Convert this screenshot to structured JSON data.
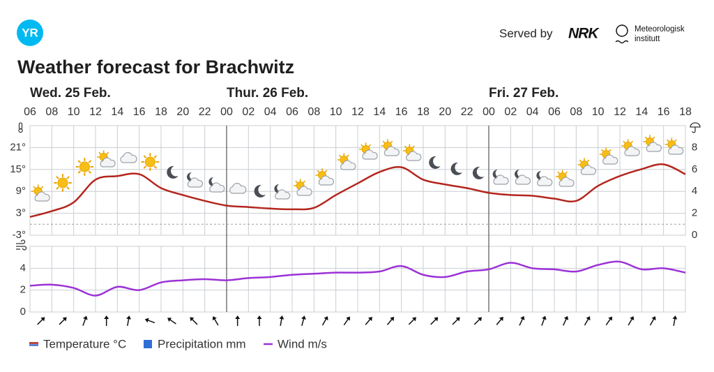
{
  "header": {
    "logo": "YR",
    "served_by": "Served by",
    "nrk": "NRK",
    "met_line1": "Meteorologisk",
    "met_line2": "institutt"
  },
  "chart_data": [
    {
      "type": "line",
      "title": "Weather forecast for Brachwitz",
      "day_labels": [
        {
          "value": 6,
          "label": "Wed. 25 Feb."
        },
        {
          "value": 24,
          "label": "Thur. 26 Feb."
        },
        {
          "value": 48,
          "label": "Fri. 27 Feb."
        }
      ],
      "xlim": [
        6,
        66
      ],
      "xticks": [
        {
          "value": 6,
          "label": "06"
        },
        {
          "value": 8,
          "label": "08"
        },
        10,
        12,
        14,
        16,
        18,
        20,
        22,
        {
          "value": 24,
          "label": "00"
        },
        {
          "value": 26,
          "label": "02"
        },
        {
          "value": 28,
          "label": "04"
        },
        {
          "value": 30,
          "label": "06"
        },
        {
          "value": 32,
          "label": "08"
        },
        {
          "value": 34,
          "label": "10"
        },
        {
          "value": 36,
          "label": "12"
        },
        {
          "value": 38,
          "label": "14"
        },
        {
          "value": 40,
          "label": "16"
        },
        {
          "value": 42,
          "label": "18"
        },
        {
          "value": 44,
          "label": "20"
        },
        {
          "value": 46,
          "label": "22"
        },
        {
          "value": 48,
          "label": "00"
        },
        {
          "value": 50,
          "label": "02"
        },
        {
          "value": 52,
          "label": "04"
        },
        {
          "value": 54,
          "label": "06"
        },
        {
          "value": 56,
          "label": "08"
        },
        {
          "value": 58,
          "label": "10"
        },
        {
          "value": 60,
          "label": "12"
        },
        {
          "value": 62,
          "label": "14"
        },
        {
          "value": 64,
          "label": "16"
        },
        {
          "value": 66,
          "label": "18"
        }
      ],
      "x": [
        6,
        8,
        10,
        12,
        14,
        16,
        18,
        20,
        22,
        24,
        26,
        28,
        30,
        32,
        34,
        36,
        38,
        40,
        42,
        44,
        46,
        48,
        50,
        52,
        54,
        56,
        58,
        60,
        62,
        64,
        66
      ],
      "series": [
        {
          "name": "Temperature °C",
          "color": "#b3261e",
          "cold_color": "#3a6fd8",
          "values": [
            2.0,
            3.6,
            6.0,
            12.2,
            13.2,
            13.7,
            9.9,
            8.0,
            6.4,
            5.1,
            4.7,
            4.3,
            4.1,
            4.5,
            8.0,
            11.2,
            14.3,
            15.6,
            12.2,
            10.9,
            9.9,
            8.6,
            8.0,
            7.8,
            7.0,
            6.4,
            10.5,
            13.2,
            15.1,
            16.4,
            13.7
          ]
        },
        {
          "name": "Precipitation mm",
          "type": "bar",
          "axis": "y2",
          "color": "#2f6fd6",
          "values": [
            0,
            0,
            0,
            0,
            0,
            0,
            0,
            0,
            0,
            0,
            0,
            0,
            0,
            0,
            0,
            0,
            0,
            0,
            0,
            0,
            0,
            0,
            0,
            0,
            0,
            0,
            0,
            0,
            0,
            0,
            0
          ]
        }
      ],
      "ylim": [
        -3,
        27
      ],
      "yticks": [
        {
          "value": -3,
          "label": "-3°"
        },
        {
          "value": 3,
          "label": "3°"
        },
        {
          "value": 9,
          "label": "9°"
        },
        {
          "value": 15,
          "label": "15°"
        },
        {
          "value": 21,
          "label": "21°"
        }
      ],
      "y2lim": [
        0,
        10
      ],
      "y2ticks": [
        0,
        2,
        4,
        6,
        8
      ],
      "grid": true,
      "freezing_line": 0
    },
    {
      "type": "line",
      "xlim": [
        6,
        66
      ],
      "x": [
        6,
        8,
        10,
        12,
        14,
        16,
        18,
        20,
        22,
        24,
        26,
        28,
        30,
        32,
        34,
        36,
        38,
        40,
        42,
        44,
        46,
        48,
        50,
        52,
        54,
        56,
        58,
        60,
        62,
        64,
        66
      ],
      "series": [
        {
          "name": "Wind m/s",
          "color": "#9b32d6",
          "values": [
            2.4,
            2.5,
            2.2,
            1.5,
            2.3,
            2.0,
            2.7,
            2.9,
            3.0,
            2.9,
            3.1,
            3.2,
            3.4,
            3.5,
            3.6,
            3.6,
            3.7,
            4.2,
            3.4,
            3.2,
            3.7,
            3.9,
            4.5,
            4.0,
            3.9,
            3.7,
            4.3,
            4.6,
            3.9,
            4.0,
            3.6
          ]
        }
      ],
      "ylim": [
        0,
        6
      ],
      "yticks": [
        0,
        2,
        4
      ],
      "grid": true,
      "arrows": {
        "x": [
          7,
          9,
          11,
          13,
          15,
          17,
          19,
          21,
          23,
          25,
          27,
          29,
          31,
          33,
          35,
          37,
          39,
          41,
          43,
          45,
          47,
          49,
          51,
          53,
          55,
          57,
          59,
          61,
          63,
          65
        ],
        "values": [
          45,
          45,
          20,
          0,
          10,
          290,
          305,
          315,
          330,
          0,
          0,
          10,
          15,
          30,
          35,
          40,
          40,
          45,
          45,
          45,
          45,
          40,
          25,
          20,
          25,
          30,
          35,
          30,
          30,
          10
        ]
      }
    }
  ]
}
